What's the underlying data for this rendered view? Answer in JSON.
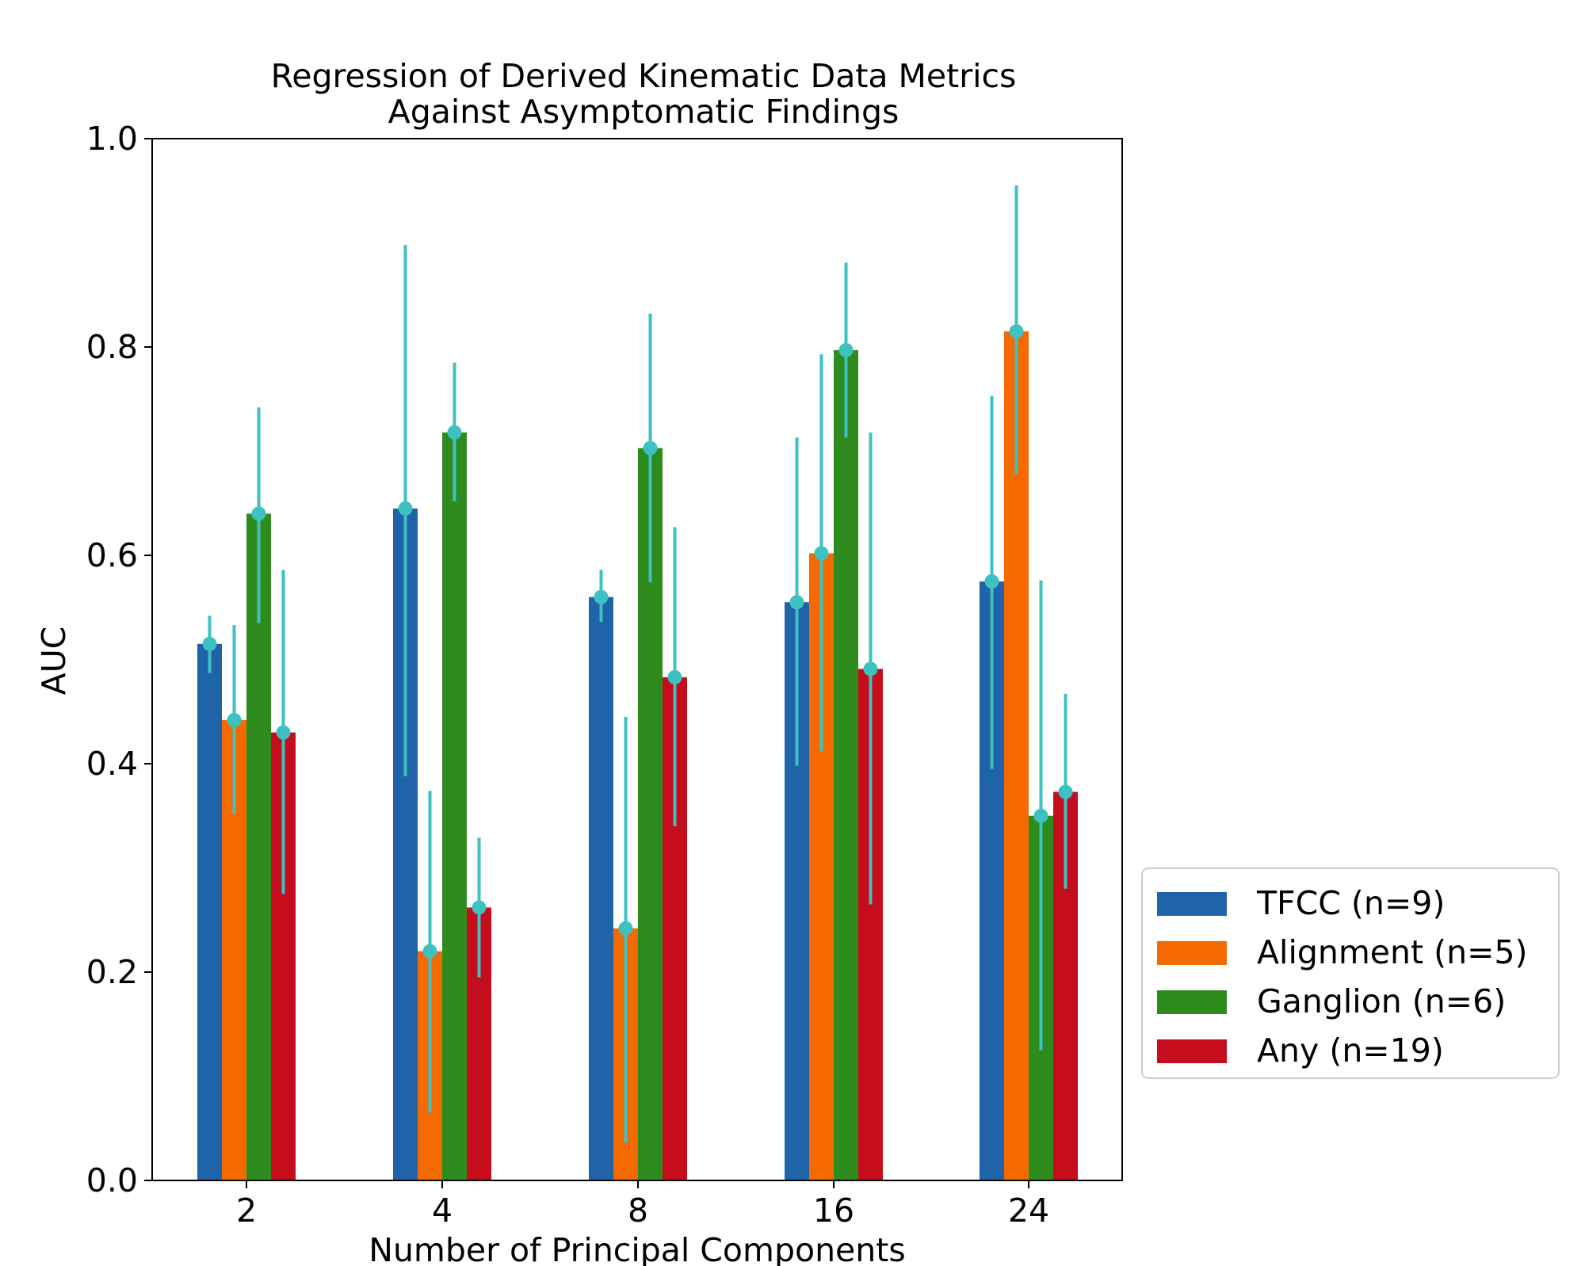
{
  "chart_data": {
    "type": "bar",
    "title": "Regression of Derived Kinematic Data Metrics\nAgainst Asymptomatic Findings",
    "title_lines": [
      "Regression of Derived Kinematic Data Metrics",
      "Against Asymptomatic Findings"
    ],
    "xlabel": "Number of Principal Components",
    "ylabel": "AUC",
    "categories": [
      "2",
      "4",
      "8",
      "16",
      "24"
    ],
    "ylim": [
      0,
      1.0
    ],
    "yticks": [
      "0.0",
      "0.2",
      "0.4",
      "0.6",
      "0.8",
      "1.0"
    ],
    "grid": false,
    "legend_position": "right (outside plot, lower)",
    "error_bar_color": "#3ec1c1",
    "series": [
      {
        "name": "TFCC (n=9)",
        "color": "#1f63a8",
        "values": [
          0.515,
          0.645,
          0.56,
          0.555,
          0.575
        ],
        "err_low": [
          0.487,
          0.388,
          0.536,
          0.398,
          0.395
        ],
        "err_high": [
          0.542,
          0.898,
          0.586,
          0.713,
          0.753
        ]
      },
      {
        "name": "Alignment (n=5)",
        "color": "#f56a00",
        "values": [
          0.442,
          0.22,
          0.242,
          0.602,
          0.815
        ],
        "err_low": [
          0.352,
          0.065,
          0.036,
          0.412,
          0.678
        ],
        "err_high": [
          0.533,
          0.374,
          0.445,
          0.793,
          0.955
        ]
      },
      {
        "name": "Ganglion (n=6)",
        "color": "#2e8b1e",
        "values": [
          0.64,
          0.718,
          0.703,
          0.797,
          0.35
        ],
        "err_low": [
          0.535,
          0.652,
          0.574,
          0.713,
          0.125
        ],
        "err_high": [
          0.742,
          0.785,
          0.832,
          0.881,
          0.576
        ]
      },
      {
        "name": "Any (n=19)",
        "color": "#c50d1d",
        "values": [
          0.43,
          0.262,
          0.483,
          0.491,
          0.373
        ],
        "err_low": [
          0.275,
          0.195,
          0.34,
          0.265,
          0.28
        ],
        "err_high": [
          0.586,
          0.329,
          0.627,
          0.718,
          0.467
        ]
      }
    ]
  }
}
